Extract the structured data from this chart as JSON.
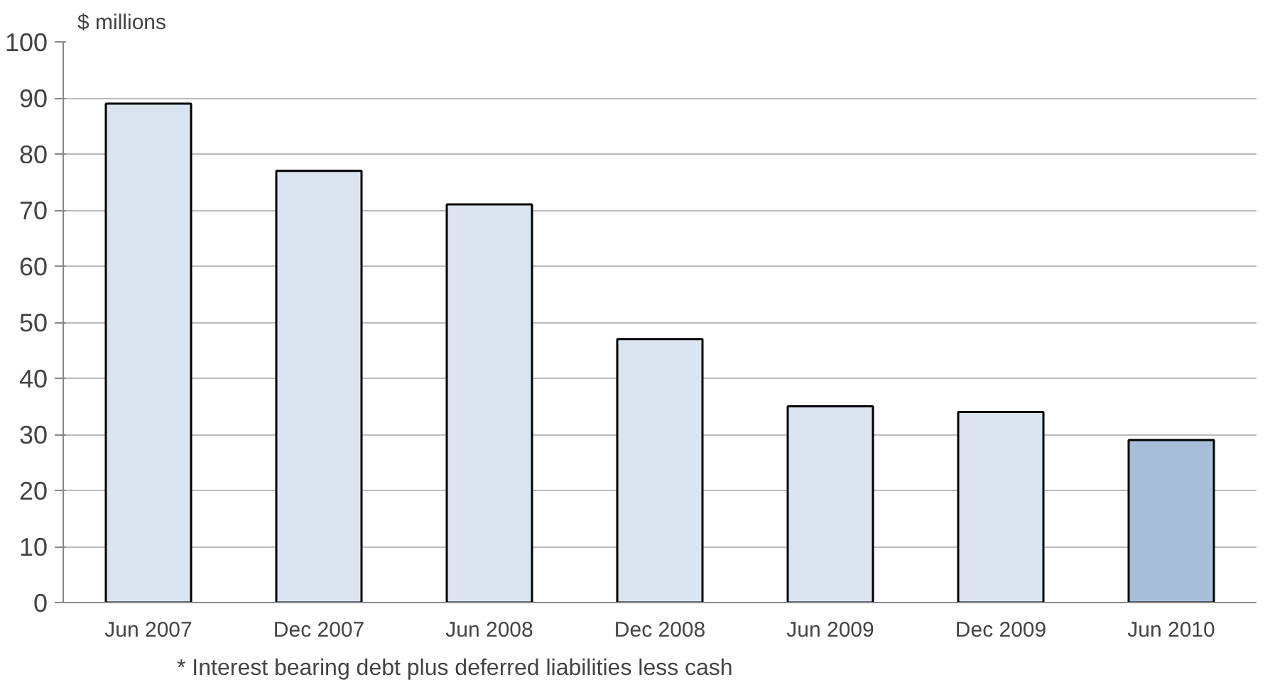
{
  "chart_data": {
    "type": "bar",
    "ylabel": "$ millions",
    "categories": [
      "Jun 2007",
      "Dec 2007",
      "Jun 2008",
      "Dec 2008",
      "Jun 2009",
      "Dec 2009",
      "Jun 2010"
    ],
    "values": [
      89,
      77,
      71,
      47,
      35,
      34,
      29
    ],
    "colors": [
      "#dbe5f1",
      "#dbe5f1",
      "#dbe5f1",
      "#dbe5f1",
      "#dbe5f1",
      "#dbe5f1",
      "#a7bfd9"
    ],
    "ylim": [
      0,
      100
    ],
    "yticks": [
      0,
      10,
      20,
      30,
      40,
      50,
      60,
      70,
      80,
      90,
      100
    ],
    "grid": "y",
    "annotations": [
      "* Interest bearing debt plus deferred liabilities less cash"
    ]
  }
}
